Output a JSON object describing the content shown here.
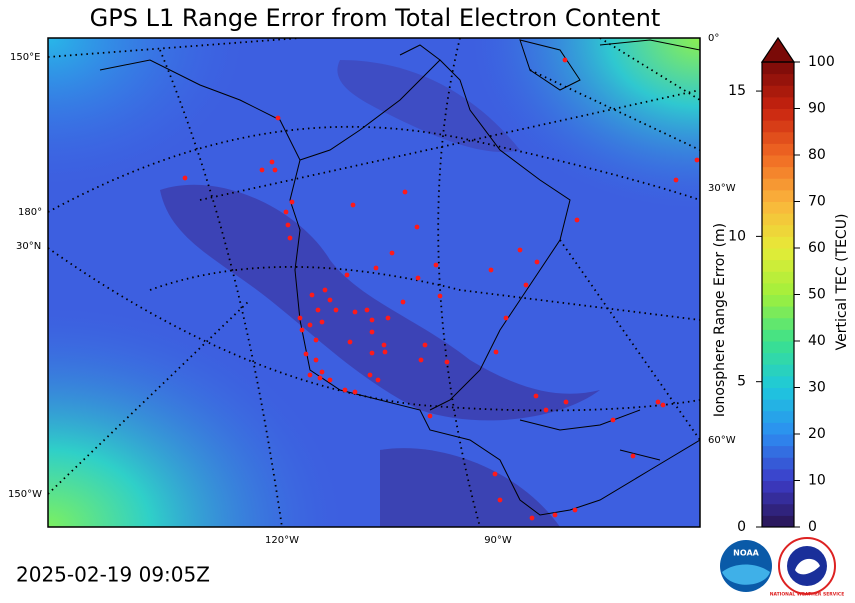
{
  "title": "GPS L1 Range Error from Total Electron Content",
  "timestamp": "2025-02-19 09:05Z",
  "colorbar": {
    "label": "Vertical TEC (TECU)",
    "lim": [
      0,
      100
    ],
    "ticks": [
      0,
      10,
      20,
      30,
      40,
      50,
      60,
      70,
      80,
      90,
      100
    ]
  },
  "range_axis": {
    "label": "Ionosphere Range Error (m)",
    "lim": [
      0,
      16
    ],
    "ticks": [
      0,
      5,
      10,
      15
    ]
  },
  "graticule_labels": [
    "150°E",
    "180°",
    "30°N",
    "150°W",
    "120°W",
    "90°W",
    "0°",
    "30°W",
    "60°W"
  ],
  "logos": [
    "NOAA",
    "NATIONAL WEATHER SERVICE"
  ]
}
